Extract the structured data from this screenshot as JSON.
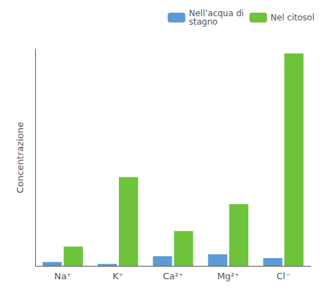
{
  "chart_data": {
    "type": "bar",
    "categories": [
      "Na⁺",
      "K⁺",
      "Ca²⁺",
      "Mg²⁺",
      "Cl⁻"
    ],
    "series": [
      {
        "name": "Nell’acqua di\nstagno",
        "color": "#5b9bd5",
        "values": [
          1.0,
          0.5,
          2.5,
          3.0,
          2.0
        ]
      },
      {
        "name": "Nel citosol",
        "color": "#6dc43a",
        "values": [
          5.0,
          23.0,
          9.0,
          16.0,
          55.0
        ]
      }
    ],
    "ylabel": "Concentrazione",
    "ylim": [
      0,
      56.1
    ],
    "yticks": [],
    "grid": false,
    "legend": "upper right",
    "tick_labels": "x"
  }
}
